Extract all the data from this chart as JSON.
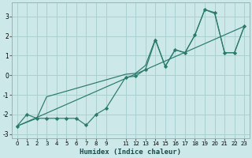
{
  "xlabel": "Humidex (Indice chaleur)",
  "bg_color": "#cce8e8",
  "grid_color": "#aad0d0",
  "line_color": "#2a7a6a",
  "xlim": [
    -0.5,
    23.5
  ],
  "ylim": [
    -3.2,
    3.7
  ],
  "yticks": [
    -3,
    -2,
    -1,
    0,
    1,
    2,
    3
  ],
  "xticks": [
    0,
    1,
    2,
    3,
    4,
    5,
    6,
    7,
    8,
    9,
    11,
    12,
    13,
    14,
    15,
    16,
    17,
    18,
    19,
    20,
    21,
    22,
    23
  ],
  "series1_x": [
    0,
    1,
    2,
    3,
    4,
    5,
    6,
    7,
    8,
    9,
    11,
    12,
    13,
    14,
    15,
    16,
    17,
    18,
    19,
    20,
    21,
    22,
    23
  ],
  "series1_y": [
    -2.6,
    -2.0,
    -2.2,
    -2.2,
    -2.2,
    -2.2,
    -2.2,
    -2.55,
    -2.0,
    -1.7,
    -0.1,
    -0.05,
    0.3,
    1.8,
    0.45,
    1.3,
    1.15,
    2.05,
    3.35,
    3.2,
    1.15,
    1.15,
    2.5
  ],
  "series2_x": [
    0,
    2,
    3,
    11,
    12,
    13,
    14,
    15,
    16,
    17,
    18,
    19,
    20,
    21,
    22,
    23
  ],
  "series2_y": [
    -2.6,
    -2.2,
    -1.1,
    0.05,
    0.1,
    0.5,
    1.85,
    0.45,
    1.3,
    1.15,
    2.05,
    3.35,
    3.15,
    1.15,
    1.15,
    2.5
  ],
  "series3_x": [
    0,
    23
  ],
  "series3_y": [
    -2.6,
    2.5
  ]
}
